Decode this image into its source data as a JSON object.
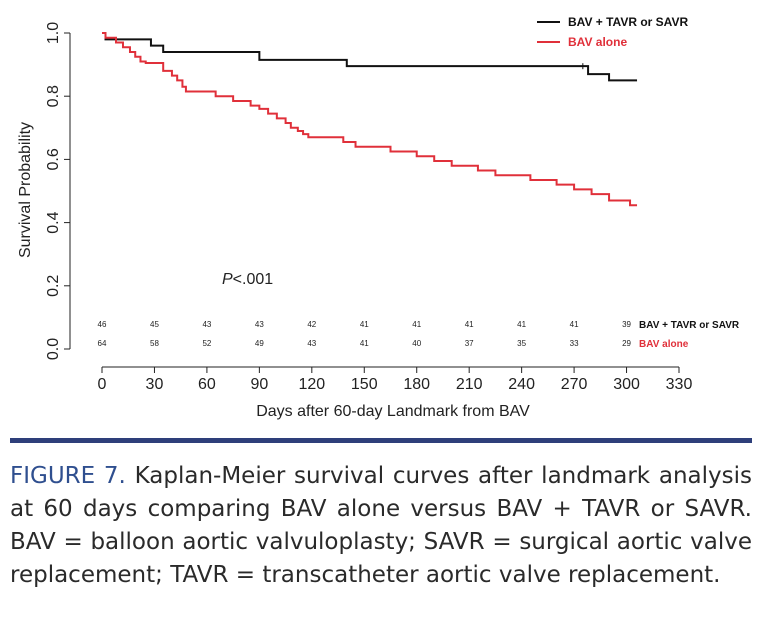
{
  "colors": {
    "group1": "#111111",
    "group2": "#e0303a",
    "rule": "#2e3f7a",
    "caption_label": "#2f4f8f"
  },
  "chart_data": {
    "type": "line",
    "subtype": "kaplan-meier step",
    "title": "",
    "xlabel": "Days after 60-day Landmark from BAV",
    "ylabel": "Survival Probability",
    "xlim": [
      0,
      330
    ],
    "ylim": [
      0.0,
      1.0
    ],
    "x_ticks": [
      "0",
      "30",
      "60",
      "90",
      "120",
      "150",
      "180",
      "210",
      "240",
      "270",
      "300",
      "330"
    ],
    "y_ticks": [
      "0.0",
      "0.2",
      "0.4",
      "0.6",
      "0.8",
      "1.0"
    ],
    "annotation": {
      "prefix": "P",
      "text": "<.001"
    },
    "legend": {
      "position": "top-right",
      "entries": [
        "BAV + TAVR or SAVR",
        "BAV alone"
      ]
    },
    "series": [
      {
        "name": "BAV + TAVR or SAVR",
        "color": "#111111",
        "x": [
          0,
          2,
          10,
          15,
          18,
          28,
          35,
          90,
          140,
          275,
          278,
          280,
          290,
          306
        ],
        "y": [
          1.0,
          0.98,
          0.98,
          0.98,
          0.98,
          0.96,
          0.94,
          0.915,
          0.895,
          0.895,
          0.87,
          0.87,
          0.85,
          0.85
        ],
        "risk_label": "BAV + TAVR or SAVR",
        "at_risk": [
          "46",
          "45",
          "43",
          "43",
          "42",
          "41",
          "41",
          "41",
          "41",
          "41",
          "39"
        ]
      },
      {
        "name": "BAV alone",
        "color": "#e0303a",
        "x": [
          0,
          2,
          8,
          12,
          16,
          19,
          22,
          25,
          30,
          35,
          40,
          43,
          46,
          48,
          52,
          58,
          65,
          75,
          85,
          90,
          95,
          100,
          105,
          108,
          112,
          115,
          118,
          122,
          126,
          138,
          145,
          165,
          180,
          190,
          200,
          215,
          225,
          245,
          260,
          270,
          280,
          290,
          302,
          306
        ],
        "y": [
          1.0,
          0.985,
          0.97,
          0.955,
          0.94,
          0.925,
          0.91,
          0.905,
          0.905,
          0.88,
          0.865,
          0.85,
          0.83,
          0.815,
          0.815,
          0.815,
          0.8,
          0.785,
          0.77,
          0.76,
          0.745,
          0.73,
          0.715,
          0.7,
          0.69,
          0.68,
          0.67,
          0.67,
          0.67,
          0.655,
          0.64,
          0.625,
          0.61,
          0.595,
          0.58,
          0.565,
          0.55,
          0.535,
          0.52,
          0.505,
          0.49,
          0.47,
          0.455,
          0.455
        ],
        "risk_label": "BAV alone",
        "at_risk": [
          "64",
          "58",
          "52",
          "49",
          "43",
          "41",
          "40",
          "37",
          "35",
          "33",
          "29"
        ]
      }
    ],
    "at_risk_times": [
      0,
      30,
      60,
      90,
      120,
      150,
      180,
      210,
      240,
      270,
      300
    ]
  },
  "caption": {
    "label": "FIGURE 7.",
    "text": " Kaplan-Meier survival curves after landmark analysis at 60 days comparing BAV alone versus BAV + TAVR or SAVR. BAV = balloon aortic valvuloplasty; SAVR = surgical aortic valve replacement; TAVR = transcatheter aortic valve replacement."
  }
}
